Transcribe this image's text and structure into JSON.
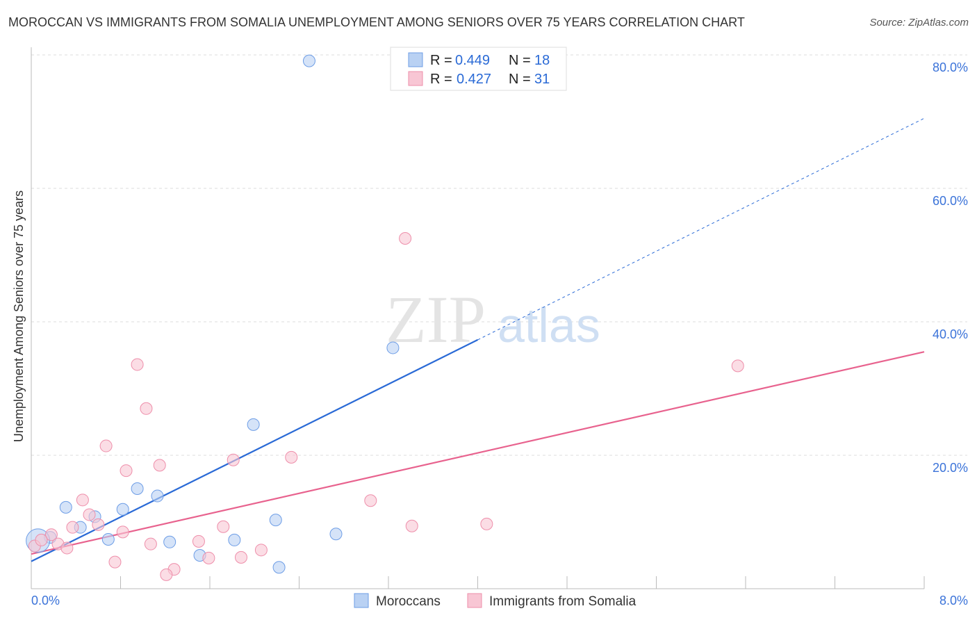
{
  "title": "MOROCCAN VS IMMIGRANTS FROM SOMALIA UNEMPLOYMENT AMONG SENIORS OVER 75 YEARS CORRELATION CHART",
  "source": "Source: ZipAtlas.com",
  "watermark": "ZIPatlas",
  "chart_data": {
    "type": "scatter",
    "title": "MOROCCAN VS IMMIGRANTS FROM SOMALIA UNEMPLOYMENT AMONG SENIORS OVER 75 YEARS CORRELATION CHART",
    "xlabel": "",
    "ylabel": "Unemployment Among Seniors over 75 years",
    "xlim": [
      0,
      8
    ],
    "ylim": [
      0,
      80
    ],
    "x_tick_labels": [
      "0.0%",
      "8.0%"
    ],
    "y_ticks": [
      20,
      40,
      60,
      80
    ],
    "y_tick_labels": [
      "20.0%",
      "40.0%",
      "60.0%",
      "80.0%"
    ],
    "grid": true,
    "legend_position": "top-center",
    "series": [
      {
        "name": "Moroccans",
        "color": "#6d9de6",
        "fill": "#b9d1f3",
        "line_color": "#2a6ad6",
        "R": "0.449",
        "N": "18",
        "trend": {
          "x": [
            0,
            4,
            8
          ],
          "y": [
            4.1,
            37.3,
            70.5
          ],
          "solid_until": 4
        },
        "points": [
          [
            2.49,
            79.1
          ],
          [
            3.24,
            36.1
          ],
          [
            1.99,
            24.6
          ],
          [
            0.95,
            15.0
          ],
          [
            1.13,
            13.9
          ],
          [
            0.31,
            12.2
          ],
          [
            0.82,
            11.9
          ],
          [
            0.57,
            10.8
          ],
          [
            0.44,
            9.2
          ],
          [
            2.19,
            10.3
          ],
          [
            2.73,
            8.2
          ],
          [
            0.69,
            7.4
          ],
          [
            1.24,
            7.0
          ],
          [
            1.82,
            7.3
          ],
          [
            0.17,
            7.7
          ],
          [
            0.06,
            7.2
          ],
          [
            1.51,
            5.0
          ],
          [
            2.22,
            3.2
          ]
        ]
      },
      {
        "name": "Immigrants from Somalia",
        "color": "#ee8eaa",
        "fill": "#f8c6d4",
        "line_color": "#e8628e",
        "R": "0.427",
        "N": "31",
        "trend": {
          "x": [
            0,
            8
          ],
          "y": [
            5.2,
            35.5
          ]
        },
        "points": [
          [
            3.35,
            52.5
          ],
          [
            0.95,
            33.6
          ],
          [
            6.33,
            33.4
          ],
          [
            1.03,
            27.0
          ],
          [
            0.67,
            21.4
          ],
          [
            1.15,
            18.5
          ],
          [
            1.81,
            19.3
          ],
          [
            2.33,
            19.7
          ],
          [
            0.85,
            17.7
          ],
          [
            0.46,
            13.3
          ],
          [
            3.04,
            13.2
          ],
          [
            0.52,
            11.1
          ],
          [
            0.6,
            9.6
          ],
          [
            0.37,
            9.2
          ],
          [
            0.82,
            8.5
          ],
          [
            1.72,
            9.3
          ],
          [
            3.41,
            9.4
          ],
          [
            4.08,
            9.7
          ],
          [
            0.18,
            8.1
          ],
          [
            1.5,
            7.1
          ],
          [
            1.07,
            6.7
          ],
          [
            0.24,
            6.7
          ],
          [
            0.32,
            6.1
          ],
          [
            2.06,
            5.8
          ],
          [
            0.75,
            4.0
          ],
          [
            1.88,
            4.7
          ],
          [
            1.59,
            4.6
          ],
          [
            1.28,
            2.9
          ],
          [
            1.21,
            2.1
          ],
          [
            0.03,
            6.4
          ],
          [
            0.09,
            7.3
          ]
        ]
      }
    ]
  },
  "legend": {
    "r_label": "R =",
    "n_label": "N ="
  }
}
